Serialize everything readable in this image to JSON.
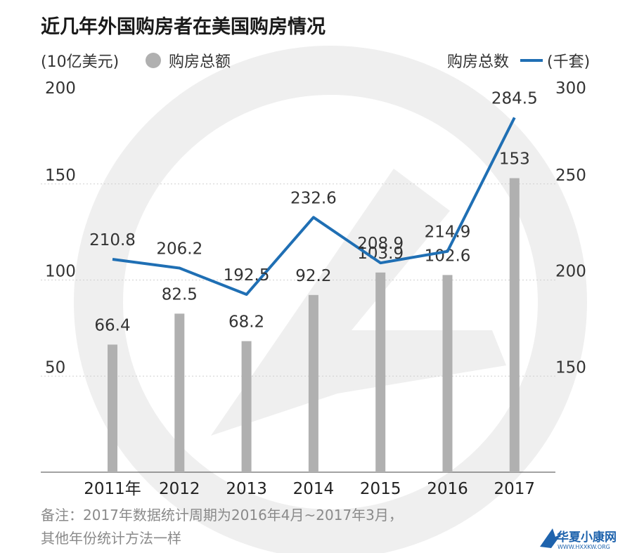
{
  "title": "近几年外国购房者在美国购房情况",
  "legend": {
    "left_unit": "(10亿美元)",
    "bar_label": "购房总额",
    "line_label": "购房总数",
    "right_unit": "(千套)"
  },
  "note": {
    "line1": "备注：2017年数据统计周期为2016年4月~2017年3月，",
    "line2": "其他年份统计方法一样"
  },
  "logo": {
    "text": "华夏小康网",
    "sub": "WWW.HXXKW.ORG",
    "accent_color": "#1e63ad"
  },
  "chart_data": {
    "type": "bar",
    "categories": [
      "2011年",
      "2012",
      "2013",
      "2014",
      "2015",
      "2016",
      "2017"
    ],
    "series": [
      {
        "name": "购房总额",
        "type": "bar",
        "axis": "left",
        "color": "#b0b0b0",
        "values": [
          66.4,
          82.5,
          68.2,
          92.2,
          103.9,
          102.6,
          153
        ],
        "labels": [
          "66.4",
          "82.5",
          "68.2",
          "92.2",
          "103.9",
          "102.6",
          "153"
        ]
      },
      {
        "name": "购房总数",
        "type": "line",
        "axis": "right",
        "color": "#1f6fb4",
        "values": [
          210.8,
          206.2,
          192.5,
          232.6,
          208.9,
          214.9,
          284.5
        ],
        "labels": [
          "210.8",
          "206.2",
          "192.5",
          "232.6",
          "208.9",
          "214.9",
          "284.5"
        ]
      }
    ],
    "y_left": {
      "ylim": [
        0,
        200
      ],
      "ticks": [
        50,
        100,
        150,
        200
      ],
      "tick_labels": [
        "50",
        "100",
        "150",
        "200"
      ]
    },
    "y_right": {
      "ylim": [
        100,
        300
      ],
      "ticks": [
        150,
        200,
        250,
        300
      ],
      "tick_labels": [
        "150",
        "200",
        "250",
        "300"
      ]
    },
    "grid": true,
    "legend_position": "top"
  }
}
